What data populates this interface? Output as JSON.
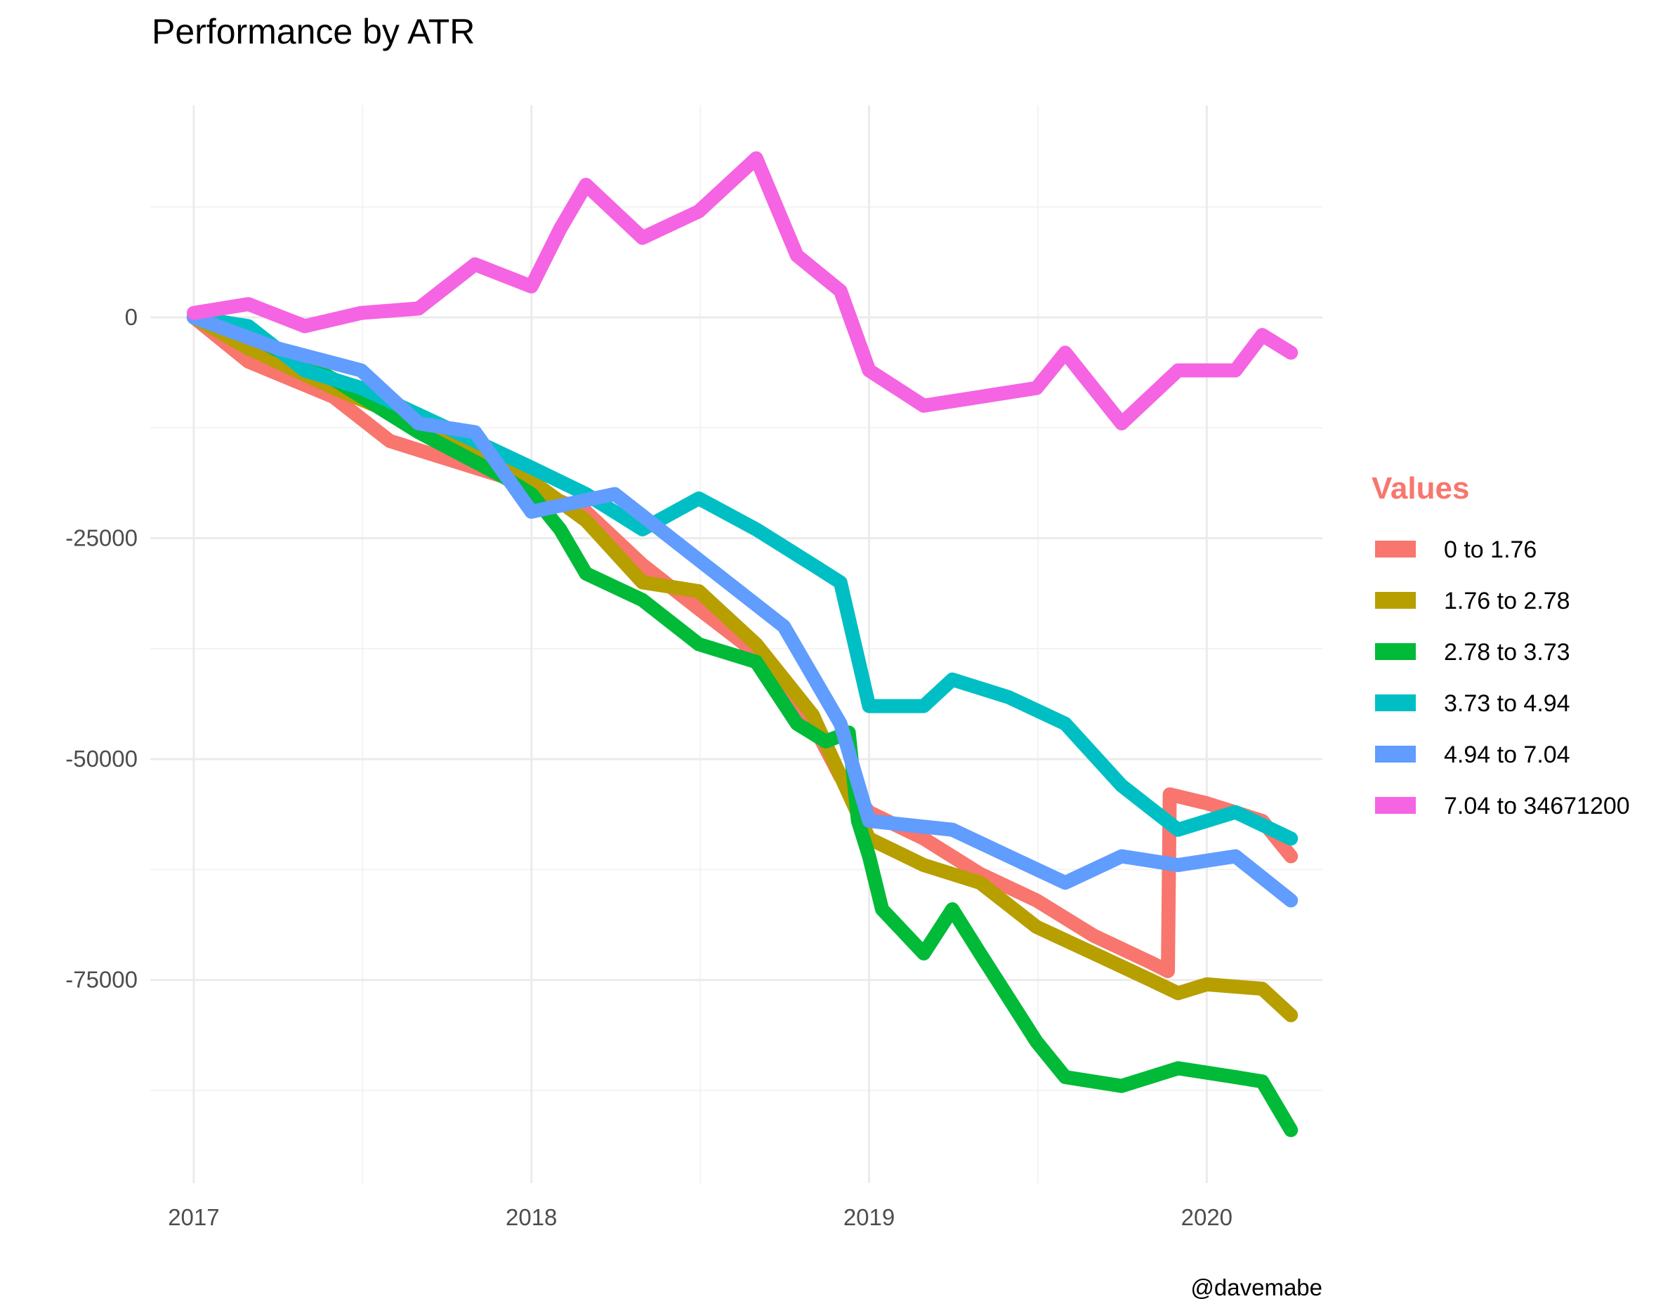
{
  "chart_data": {
    "type": "line",
    "title": "Performance by ATR",
    "xlabel": "",
    "ylabel": "",
    "x_ticks": [
      "2017",
      "2018",
      "2019",
      "2020"
    ],
    "y_ticks": [
      0,
      -25000,
      -50000,
      -75000
    ],
    "y_tick_labels": [
      "0",
      "-25000",
      "-50000",
      "-75000"
    ],
    "xlim": [
      "2016-11-15",
      "2020-05-05"
    ],
    "ylim": [
      -98000,
      24000
    ],
    "grid": true,
    "legend_title": "Values",
    "legend_title_color": "#F8766D",
    "legend_position": "right",
    "caption": "@davemabe",
    "series": [
      {
        "name": "0 to 1.76",
        "color": "#F8766D",
        "points": [
          [
            "2017-01-01",
            0
          ],
          [
            "2017-03-01",
            -5000
          ],
          [
            "2017-06-01",
            -9000
          ],
          [
            "2017-08-01",
            -14000
          ],
          [
            "2017-10-01",
            -16000
          ],
          [
            "2017-12-01",
            -18000
          ],
          [
            "2018-01-01",
            -19500
          ],
          [
            "2018-03-01",
            -22000
          ],
          [
            "2018-05-01",
            -28000
          ],
          [
            "2018-07-01",
            -33000
          ],
          [
            "2018-09-01",
            -38000
          ],
          [
            "2018-11-01",
            -46000
          ],
          [
            "2018-12-01",
            -52000
          ],
          [
            "2019-01-01",
            -56000
          ],
          [
            "2019-03-01",
            -59000
          ],
          [
            "2019-05-01",
            -63000
          ],
          [
            "2019-07-01",
            -66000
          ],
          [
            "2019-09-01",
            -70000
          ],
          [
            "2019-11-01",
            -73000
          ],
          [
            "2019-11-20",
            -74000
          ],
          [
            "2019-11-22",
            -54000
          ],
          [
            "2020-01-01",
            -55000
          ],
          [
            "2020-03-01",
            -57000
          ],
          [
            "2020-04-01",
            -61000
          ]
        ]
      },
      {
        "name": "1.76 to 2.78",
        "color": "#B79F00",
        "points": [
          [
            "2017-01-01",
            0
          ],
          [
            "2017-03-01",
            -3500
          ],
          [
            "2017-06-01",
            -8000
          ],
          [
            "2017-09-01",
            -12000
          ],
          [
            "2017-12-01",
            -17000
          ],
          [
            "2018-01-01",
            -18500
          ],
          [
            "2018-03-01",
            -23000
          ],
          [
            "2018-05-01",
            -30000
          ],
          [
            "2018-07-01",
            -31000
          ],
          [
            "2018-09-01",
            -37000
          ],
          [
            "2018-11-01",
            -45000
          ],
          [
            "2019-01-01",
            -59000
          ],
          [
            "2019-03-01",
            -62000
          ],
          [
            "2019-05-01",
            -64000
          ],
          [
            "2019-07-01",
            -69000
          ],
          [
            "2019-09-01",
            -72000
          ],
          [
            "2019-11-01",
            -75000
          ],
          [
            "2019-12-01",
            -76500
          ],
          [
            "2020-01-01",
            -75500
          ],
          [
            "2020-03-01",
            -76000
          ],
          [
            "2020-04-01",
            -79000
          ]
        ]
      },
      {
        "name": "2.78 to 3.73",
        "color": "#00BA38",
        "points": [
          [
            "2017-01-01",
            0
          ],
          [
            "2017-03-01",
            -2000
          ],
          [
            "2017-06-01",
            -7000
          ],
          [
            "2017-09-01",
            -13000
          ],
          [
            "2017-12-01",
            -18000
          ],
          [
            "2018-01-01",
            -20000
          ],
          [
            "2018-02-01",
            -24000
          ],
          [
            "2018-03-01",
            -29000
          ],
          [
            "2018-05-01",
            -32000
          ],
          [
            "2018-07-01",
            -37000
          ],
          [
            "2018-09-01",
            -39000
          ],
          [
            "2018-10-15",
            -46000
          ],
          [
            "2018-11-15",
            -48000
          ],
          [
            "2018-12-10",
            -47000
          ],
          [
            "2018-12-20",
            -57000
          ],
          [
            "2019-01-01",
            -61000
          ],
          [
            "2019-01-15",
            -67000
          ],
          [
            "2019-03-01",
            -72000
          ],
          [
            "2019-04-01",
            -67000
          ],
          [
            "2019-05-01",
            -72000
          ],
          [
            "2019-07-01",
            -82000
          ],
          [
            "2019-08-01",
            -86000
          ],
          [
            "2019-10-01",
            -87000
          ],
          [
            "2019-12-01",
            -85000
          ],
          [
            "2020-02-01",
            -86000
          ],
          [
            "2020-03-01",
            -86500
          ],
          [
            "2020-04-01",
            -92000
          ]
        ]
      },
      {
        "name": "3.73 to 4.94",
        "color": "#00BFC4",
        "points": [
          [
            "2017-01-01",
            0
          ],
          [
            "2017-03-01",
            -1000
          ],
          [
            "2017-05-01",
            -6000
          ],
          [
            "2017-07-01",
            -8000
          ],
          [
            "2017-09-01",
            -11000
          ],
          [
            "2017-11-01",
            -14000
          ],
          [
            "2018-01-01",
            -17000
          ],
          [
            "2018-03-01",
            -20000
          ],
          [
            "2018-05-01",
            -24000
          ],
          [
            "2018-07-01",
            -20500
          ],
          [
            "2018-09-01",
            -24000
          ],
          [
            "2018-11-01",
            -28000
          ],
          [
            "2018-12-01",
            -30000
          ],
          [
            "2019-01-01",
            -44000
          ],
          [
            "2019-03-01",
            -44000
          ],
          [
            "2019-04-01",
            -41000
          ],
          [
            "2019-06-01",
            -43000
          ],
          [
            "2019-08-01",
            -46000
          ],
          [
            "2019-10-01",
            -53000
          ],
          [
            "2019-12-01",
            -58000
          ],
          [
            "2020-02-01",
            -56000
          ],
          [
            "2020-04-01",
            -59000
          ]
        ]
      },
      {
        "name": "4.94 to 7.04",
        "color": "#619CFF",
        "points": [
          [
            "2017-01-01",
            0
          ],
          [
            "2017-04-01",
            -3500
          ],
          [
            "2017-07-01",
            -6000
          ],
          [
            "2017-09-01",
            -12000
          ],
          [
            "2017-11-01",
            -13000
          ],
          [
            "2018-01-01",
            -22000
          ],
          [
            "2018-04-01",
            -20000
          ],
          [
            "2018-06-01",
            -25000
          ],
          [
            "2018-08-01",
            -30000
          ],
          [
            "2018-10-01",
            -35000
          ],
          [
            "2018-12-01",
            -46000
          ],
          [
            "2019-01-01",
            -57000
          ],
          [
            "2019-04-01",
            -58000
          ],
          [
            "2019-06-01",
            -61000
          ],
          [
            "2019-08-01",
            -64000
          ],
          [
            "2019-10-01",
            -61000
          ],
          [
            "2019-12-01",
            -62000
          ],
          [
            "2020-02-01",
            -61000
          ],
          [
            "2020-04-01",
            -66000
          ]
        ]
      },
      {
        "name": "7.04 to 34671200",
        "color": "#F564E3",
        "points": [
          [
            "2017-01-01",
            500
          ],
          [
            "2017-03-01",
            1500
          ],
          [
            "2017-05-01",
            -1000
          ],
          [
            "2017-07-01",
            500
          ],
          [
            "2017-09-01",
            1000
          ],
          [
            "2017-11-01",
            6000
          ],
          [
            "2018-01-01",
            3500
          ],
          [
            "2018-02-01",
            10000
          ],
          [
            "2018-03-01",
            15000
          ],
          [
            "2018-05-01",
            9000
          ],
          [
            "2018-07-01",
            12000
          ],
          [
            "2018-09-01",
            18000
          ],
          [
            "2018-10-15",
            7000
          ],
          [
            "2018-12-01",
            3000
          ],
          [
            "2019-01-01",
            -6000
          ],
          [
            "2019-03-01",
            -10000
          ],
          [
            "2019-05-01",
            -9000
          ],
          [
            "2019-07-01",
            -8000
          ],
          [
            "2019-08-01",
            -4000
          ],
          [
            "2019-10-01",
            -12000
          ],
          [
            "2019-12-01",
            -6000
          ],
          [
            "2020-02-01",
            -6000
          ],
          [
            "2020-03-01",
            -2000
          ],
          [
            "2020-04-01",
            -4000
          ]
        ]
      }
    ]
  }
}
